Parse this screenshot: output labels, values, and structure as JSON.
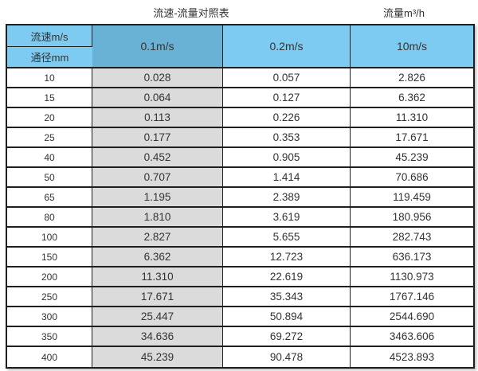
{
  "header": {
    "title": "流速-流量对照表",
    "right_label": "流量m³/h"
  },
  "chart_data": {
    "type": "table",
    "title": "流速-流量对照表",
    "unit_label": "流量m³/h",
    "corner": {
      "top": "流速m/s",
      "bottom": "通径mm"
    },
    "velocity_columns": [
      "0.1m/s",
      "0.2m/s",
      "10m/s"
    ],
    "diameter_unit": "mm",
    "rows": [
      {
        "diameter": "10",
        "values": [
          "0.028",
          "0.057",
          "2.826"
        ]
      },
      {
        "diameter": "15",
        "values": [
          "0.064",
          "0.127",
          "6.362"
        ]
      },
      {
        "diameter": "20",
        "values": [
          "0.113",
          "0.226",
          "11.310"
        ]
      },
      {
        "diameter": "25",
        "values": [
          "0.177",
          "0.353",
          "17.671"
        ]
      },
      {
        "diameter": "40",
        "values": [
          "0.452",
          "0.905",
          "45.239"
        ]
      },
      {
        "diameter": "50",
        "values": [
          "0.707",
          "1.414",
          "70.686"
        ]
      },
      {
        "diameter": "65",
        "values": [
          "1.195",
          "2.389",
          "119.459"
        ]
      },
      {
        "diameter": "80",
        "values": [
          "1.810",
          "3.619",
          "180.956"
        ]
      },
      {
        "diameter": "100",
        "values": [
          "2.827",
          "5.655",
          "282.743"
        ]
      },
      {
        "diameter": "150",
        "values": [
          "6.362",
          "12.723",
          "636.173"
        ]
      },
      {
        "diameter": "200",
        "values": [
          "11.310",
          "22.619",
          "1130.973"
        ]
      },
      {
        "diameter": "250",
        "values": [
          "17.671",
          "35.343",
          "1767.146"
        ]
      },
      {
        "diameter": "300",
        "values": [
          "25.447",
          "50.894",
          "2544.690"
        ]
      },
      {
        "diameter": "350",
        "values": [
          "34.636",
          "69.272",
          "3463.606"
        ]
      },
      {
        "diameter": "400",
        "values": [
          "45.239",
          "90.478",
          "4523.893"
        ]
      }
    ]
  },
  "colors": {
    "header_blue": "#7ECBF1",
    "highlight_column_blue": "#69B1D5",
    "highlight_column_grey": "#DBDBDB",
    "border": "#1f1f1f"
  }
}
